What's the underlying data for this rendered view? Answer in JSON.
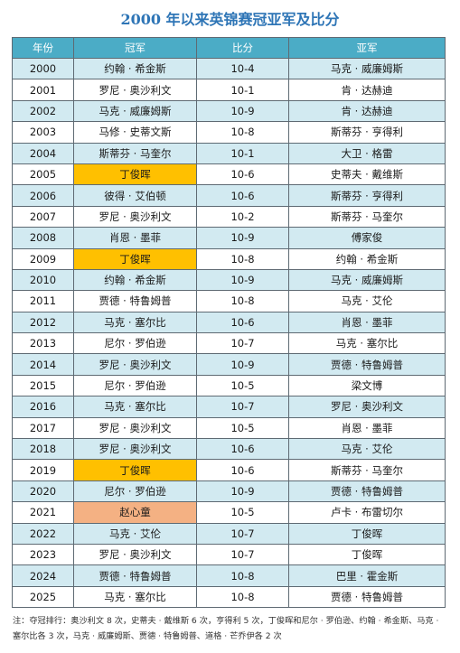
{
  "title": "2000 年以来英锦赛冠亚军及比分",
  "table": {
    "headers": [
      "年份",
      "冠军",
      "比分",
      "亚军"
    ],
    "rows": [
      {
        "year": "2000",
        "champion": "约翰 · 希金斯",
        "score": "10-4",
        "runner_up": "马克 · 威廉姆斯",
        "highlight": ""
      },
      {
        "year": "2001",
        "champion": "罗尼 · 奥沙利文",
        "score": "10-1",
        "runner_up": "肯 · 达赫迪",
        "highlight": ""
      },
      {
        "year": "2002",
        "champion": "马克 · 威廉姆斯",
        "score": "10-9",
        "runner_up": "肯 · 达赫迪",
        "highlight": ""
      },
      {
        "year": "2003",
        "champion": "马修 · 史蒂文斯",
        "score": "10-8",
        "runner_up": "斯蒂芬 · 亨得利",
        "highlight": ""
      },
      {
        "year": "2004",
        "champion": "斯蒂芬 · 马奎尔",
        "score": "10-1",
        "runner_up": "大卫 · 格雷",
        "highlight": ""
      },
      {
        "year": "2005",
        "champion": "丁俊晖",
        "score": "10-6",
        "runner_up": "史蒂夫 · 戴维斯",
        "highlight": "gold"
      },
      {
        "year": "2006",
        "champion": "彼得 · 艾伯顿",
        "score": "10-6",
        "runner_up": "斯蒂芬 · 亨得利",
        "highlight": ""
      },
      {
        "year": "2007",
        "champion": "罗尼 · 奥沙利文",
        "score": "10-2",
        "runner_up": "斯蒂芬 · 马奎尔",
        "highlight": ""
      },
      {
        "year": "2008",
        "champion": "肖恩 · 墨菲",
        "score": "10-9",
        "runner_up": "傅家俊",
        "highlight": ""
      },
      {
        "year": "2009",
        "champion": "丁俊晖",
        "score": "10-8",
        "runner_up": "约翰 · 希金斯",
        "highlight": "gold"
      },
      {
        "year": "2010",
        "champion": "约翰 · 希金斯",
        "score": "10-9",
        "runner_up": "马克 · 威廉姆斯",
        "highlight": ""
      },
      {
        "year": "2011",
        "champion": "贾德 · 特鲁姆普",
        "score": "10-8",
        "runner_up": "马克 · 艾伦",
        "highlight": ""
      },
      {
        "year": "2012",
        "champion": "马克 · 塞尔比",
        "score": "10-6",
        "runner_up": "肖恩 · 墨菲",
        "highlight": ""
      },
      {
        "year": "2013",
        "champion": "尼尔 · 罗伯逊",
        "score": "10-7",
        "runner_up": "马克 · 塞尔比",
        "highlight": ""
      },
      {
        "year": "2014",
        "champion": "罗尼 · 奥沙利文",
        "score": "10-9",
        "runner_up": "贾德 · 特鲁姆普",
        "highlight": ""
      },
      {
        "year": "2015",
        "champion": "尼尔 · 罗伯逊",
        "score": "10-5",
        "runner_up": "梁文博",
        "highlight": ""
      },
      {
        "year": "2016",
        "champion": "马克 · 塞尔比",
        "score": "10-7",
        "runner_up": "罗尼 · 奥沙利文",
        "highlight": ""
      },
      {
        "year": "2017",
        "champion": "罗尼 · 奥沙利文",
        "score": "10-5",
        "runner_up": "肖恩 · 墨菲",
        "highlight": ""
      },
      {
        "year": "2018",
        "champion": "罗尼 · 奥沙利文",
        "score": "10-6",
        "runner_up": "马克 · 艾伦",
        "highlight": ""
      },
      {
        "year": "2019",
        "champion": "丁俊晖",
        "score": "10-6",
        "runner_up": "斯蒂芬 · 马奎尔",
        "highlight": "gold"
      },
      {
        "year": "2020",
        "champion": "尼尔 · 罗伯逊",
        "score": "10-9",
        "runner_up": "贾德 · 特鲁姆普",
        "highlight": ""
      },
      {
        "year": "2021",
        "champion": "赵心童",
        "score": "10-5",
        "runner_up": "卢卡 · 布雷切尔",
        "highlight": "salmon"
      },
      {
        "year": "2022",
        "champion": "马克 · 艾伦",
        "score": "10-7",
        "runner_up": "丁俊晖",
        "highlight": ""
      },
      {
        "year": "2023",
        "champion": "罗尼 · 奥沙利文",
        "score": "10-7",
        "runner_up": "丁俊晖",
        "highlight": ""
      },
      {
        "year": "2024",
        "champion": "贾德 · 特鲁姆普",
        "score": "10-8",
        "runner_up": "巴里 · 霍金斯",
        "highlight": ""
      },
      {
        "year": "2025",
        "champion": "马克 · 塞尔比",
        "score": "10-8",
        "runner_up": "贾德 · 特鲁姆普",
        "highlight": ""
      }
    ]
  },
  "note": "注：夺冠排行：奥沙利文 8 次，史蒂夫 · 戴维斯 6 次，亨得利 5 次，丁俊晖和尼尔 · 罗伯逊、约翰 · 希金斯、马克 · 塞尔比各 3 次，马克 · 威廉姆斯、贾德 · 特鲁姆普、道格 · 芒乔伊各 2 次",
  "colors": {
    "title": "#2e75b6",
    "header_bg": "#4bacc6",
    "row_band": "#d2eaf1",
    "highlight_gold": "#ffc000",
    "highlight_salmon": "#f4b183",
    "border": "#5e6a73"
  }
}
